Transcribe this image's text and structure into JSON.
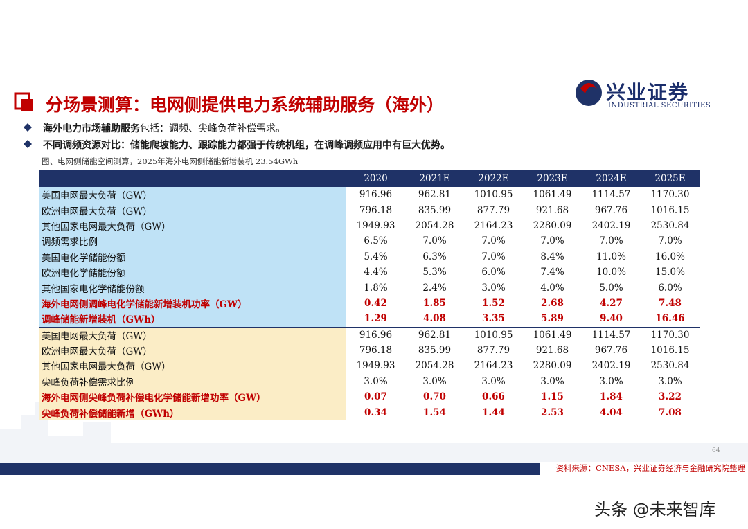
{
  "header": {
    "title": "分场景测算：电网侧提供电力系统辅助服务（海外）",
    "logo_cn": "兴业证券",
    "logo_en": "INDUSTRIAL SECURITIES"
  },
  "bullets": [
    {
      "bold": "海外电力市场辅助服务",
      "text": "包括：调频、尖峰负荷补偿需求。"
    },
    {
      "bold": "不同调频资源对比：储能爬坡能力、跟踪能力都强于传统机组，在调峰调频应用中有巨大优势。"
    }
  ],
  "caption": "图、电网侧储能空间测算，2025年海外电网侧储能新增装机 23.54GWh",
  "table": {
    "columns": [
      "2020",
      "2021E",
      "2022E",
      "2023E",
      "2024E",
      "2025E"
    ],
    "sections": [
      {
        "rows": [
          [
            "美国电网最大负荷（GW）",
            "916.96",
            "962.81",
            "1010.95",
            "1061.49",
            "1114.57",
            "1170.30"
          ],
          [
            "欧洲电网最大负荷（GW）",
            "796.18",
            "835.99",
            "877.79",
            "921.68",
            "967.76",
            "1016.15"
          ],
          [
            "其他国家电网最大负荷（GW）",
            "1949.93",
            "2054.28",
            "2164.23",
            "2280.09",
            "2402.19",
            "2530.84"
          ],
          [
            "调频需求比例",
            "6.5%",
            "7.0%",
            "7.0%",
            "7.0%",
            "7.0%",
            "7.0%"
          ],
          [
            "美国电化学储能份额",
            "5.4%",
            "6.3%",
            "7.0%",
            "8.4%",
            "11.0%",
            "16.0%"
          ],
          [
            "欧洲电化学储能份额",
            "4.4%",
            "5.3%",
            "6.0%",
            "7.4%",
            "10.0%",
            "15.0%"
          ],
          [
            "其他国家电化学储能份额",
            "1.8%",
            "2.4%",
            "3.0%",
            "4.0%",
            "5.0%",
            "6.0%"
          ],
          [
            "海外电网侧调峰电化学储能新增装机功率（GW）",
            "0.42",
            "1.85",
            "1.52",
            "2.68",
            "4.27",
            "7.48"
          ],
          [
            "调峰储能新增装机（GWh）",
            "1.29",
            "4.08",
            "3.35",
            "5.89",
            "9.40",
            "16.46"
          ]
        ]
      },
      {
        "rows": [
          [
            "美国电网最大负荷（GW）",
            "916.96",
            "962.81",
            "1010.95",
            "1061.49",
            "1114.57",
            "1170.30"
          ],
          [
            "欧洲电网最大负荷（GW）",
            "796.18",
            "835.99",
            "877.79",
            "921.68",
            "967.76",
            "1016.15"
          ],
          [
            "其他国家电网最大负荷（GW）",
            "1949.93",
            "2054.28",
            "2164.23",
            "2280.09",
            "2402.19",
            "2530.84"
          ],
          [
            "尖峰负荷补偿需求比例",
            "3.0%",
            "3.0%",
            "3.0%",
            "3.0%",
            "3.0%",
            "3.0%"
          ],
          [
            "海外电网侧尖峰负荷补偿电化学储能新增功率（GW）",
            "0.07",
            "0.70",
            "0.66",
            "1.15",
            "1.84",
            "3.22"
          ],
          [
            "尖峰负荷补偿储能新增（GWh）",
            "0.34",
            "1.54",
            "1.44",
            "2.53",
            "4.04",
            "7.08"
          ]
        ]
      }
    ]
  },
  "footer": {
    "source": "资料来源：CNESA，兴业证券经济与金融研究院整理",
    "page_number": "64",
    "watermark": "头条 @未来智库"
  }
}
